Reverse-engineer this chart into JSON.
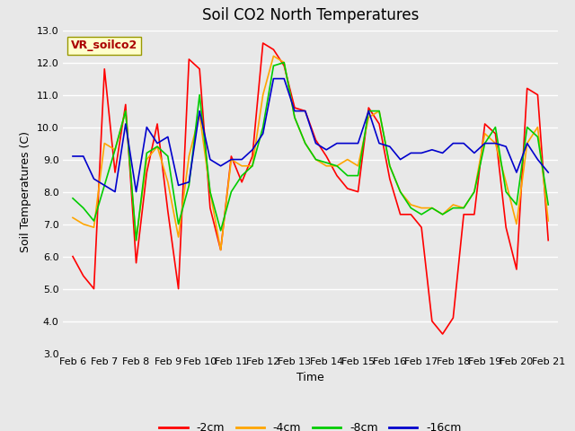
{
  "title": "Soil CO2 North Temperatures",
  "xlabel": "Time",
  "ylabel": "Soil Temperatures (C)",
  "ylim": [
    3.0,
    13.0
  ],
  "yticks": [
    3.0,
    4.0,
    5.0,
    6.0,
    7.0,
    8.0,
    9.0,
    10.0,
    11.0,
    12.0,
    13.0
  ],
  "xtick_labels": [
    "Feb 6",
    "Feb 7",
    "Feb 8",
    "Feb 9",
    "Feb 10",
    "Feb 11",
    "Feb 12",
    "Feb 13",
    "Feb 14",
    "Feb 15",
    "Feb 16",
    "Feb 17",
    "Feb 18",
    "Feb 19",
    "Feb 20",
    "Feb 21"
  ],
  "legend_label": "VR_soilco2",
  "series": {
    "-2cm": {
      "color": "#ff0000",
      "data": [
        6.0,
        5.4,
        5.0,
        11.8,
        8.6,
        10.7,
        5.8,
        8.6,
        10.1,
        7.4,
        5.0,
        12.1,
        11.8,
        7.5,
        6.2,
        9.1,
        8.3,
        9.1,
        12.6,
        12.4,
        11.9,
        10.6,
        10.5,
        9.6,
        9.1,
        8.5,
        8.1,
        8.0,
        10.6,
        10.1,
        8.4,
        7.3,
        7.3,
        6.9,
        4.0,
        3.6,
        4.1,
        7.3,
        7.3,
        10.1,
        9.8,
        6.9,
        5.6,
        11.2,
        11.0,
        6.5
      ]
    },
    "-4cm": {
      "color": "#ffa500",
      "data": [
        7.2,
        7.0,
        6.9,
        9.5,
        9.3,
        10.5,
        6.5,
        9.0,
        9.4,
        8.3,
        6.6,
        9.1,
        10.4,
        8.0,
        6.2,
        9.0,
        8.8,
        8.8,
        11.0,
        12.2,
        12.0,
        10.3,
        9.5,
        9.0,
        8.8,
        8.8,
        9.0,
        8.8,
        10.3,
        10.5,
        8.8,
        8.0,
        7.6,
        7.5,
        7.5,
        7.3,
        7.6,
        7.5,
        8.0,
        9.8,
        9.5,
        8.3,
        7.0,
        9.5,
        10.0,
        7.1
      ]
    },
    "-8cm": {
      "color": "#00cc00",
      "data": [
        7.8,
        7.5,
        7.1,
        8.2,
        9.3,
        10.5,
        6.5,
        9.2,
        9.4,
        9.1,
        7.0,
        8.2,
        11.0,
        8.0,
        6.8,
        8.0,
        8.5,
        8.8,
        10.0,
        11.9,
        12.0,
        10.3,
        9.5,
        9.0,
        8.9,
        8.8,
        8.5,
        8.5,
        10.5,
        10.5,
        8.8,
        8.0,
        7.5,
        7.3,
        7.5,
        7.3,
        7.5,
        7.5,
        8.0,
        9.5,
        10.0,
        8.0,
        7.6,
        10.0,
        9.7,
        7.6
      ]
    },
    "-16cm": {
      "color": "#0000cc",
      "data": [
        9.1,
        9.1,
        8.4,
        8.2,
        8.0,
        10.1,
        8.0,
        10.0,
        9.5,
        9.7,
        8.2,
        8.3,
        10.5,
        9.0,
        8.8,
        9.0,
        9.0,
        9.3,
        9.8,
        11.5,
        11.5,
        10.5,
        10.5,
        9.5,
        9.3,
        9.5,
        9.5,
        9.5,
        10.5,
        9.5,
        9.4,
        9.0,
        9.2,
        9.2,
        9.3,
        9.2,
        9.5,
        9.5,
        9.2,
        9.5,
        9.5,
        9.4,
        8.6,
        9.5,
        9.0,
        8.6
      ]
    }
  },
  "bg_color": "#e8e8e8",
  "plot_bg_color": "#e8e8e8",
  "grid_color": "#ffffff",
  "title_fontsize": 12,
  "axis_label_fontsize": 9,
  "tick_fontsize": 8,
  "legend_fontsize": 9
}
